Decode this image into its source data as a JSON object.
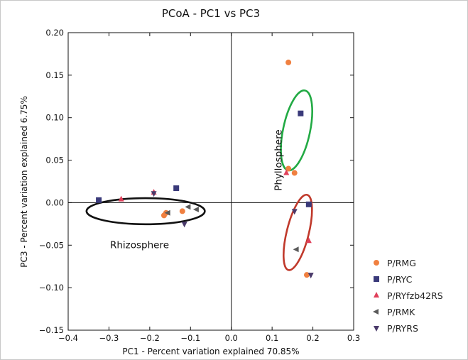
{
  "chart_data": {
    "type": "scatter",
    "title": "PCoA - PC1 vs PC3",
    "xlabel": "PC1 - Percent variation explained 70.85%",
    "ylabel": "PC3 - Percent variation explained 6.75%",
    "xlim": [
      -0.4,
      0.3
    ],
    "ylim": [
      -0.15,
      0.2
    ],
    "xticks": [
      "−0.4",
      "−0.3",
      "−0.2",
      "−0.1",
      "0.0",
      "0.1",
      "0.2",
      "0.3"
    ],
    "yticks": [
      "−0.15",
      "−0.10",
      "−0.05",
      "0.00",
      "0.05",
      "0.10",
      "0.15",
      "0.20"
    ],
    "grid": false,
    "legend_position": "bottom-right, outside plot",
    "series": [
      {
        "name": "P/RMG",
        "marker": "circle",
        "color": "#f08040",
        "points": [
          [
            -0.165,
            -0.015
          ],
          [
            -0.16,
            -0.012
          ],
          [
            -0.12,
            -0.01
          ],
          [
            0.14,
            0.165
          ],
          [
            0.14,
            0.04
          ],
          [
            0.155,
            0.035
          ],
          [
            0.185,
            -0.085
          ]
        ]
      },
      {
        "name": "P/RYC",
        "marker": "square",
        "color": "#3a3a7a",
        "points": [
          [
            -0.325,
            0.003
          ],
          [
            -0.135,
            0.017
          ],
          [
            0.17,
            0.105
          ],
          [
            0.19,
            -0.002
          ]
        ]
      },
      {
        "name": "P/RYfzb42RS",
        "marker": "triangle-up",
        "color": "#e0405a",
        "points": [
          [
            -0.27,
            0.004
          ],
          [
            -0.19,
            0.012
          ],
          [
            0.135,
            0.035
          ],
          [
            0.19,
            -0.045
          ]
        ]
      },
      {
        "name": "P/RMK",
        "marker": "triangle-left",
        "color": "#5a5a5a",
        "points": [
          [
            -0.155,
            -0.012
          ],
          [
            -0.105,
            -0.005
          ],
          [
            -0.085,
            -0.008
          ],
          [
            0.16,
            -0.055
          ]
        ]
      },
      {
        "name": "P/RYRS",
        "marker": "triangle-down",
        "color": "#4a3a6a",
        "points": [
          [
            -0.19,
            0.011
          ],
          [
            -0.115,
            -0.025
          ],
          [
            0.155,
            -0.01
          ],
          [
            0.195,
            -0.085
          ]
        ]
      }
    ],
    "annotations": [
      {
        "text": "Rhizosphere"
      },
      {
        "text": "Phyllosphere"
      }
    ],
    "ellipses": [
      {
        "color": "#111111",
        "cx": -0.21,
        "cy": -0.01,
        "rx": 0.145,
        "ry": 0.032,
        "angle_deg": 0
      },
      {
        "color": "#22aa44",
        "cx": 0.16,
        "cy": 0.085,
        "rx": 0.1,
        "ry": 0.033,
        "angle_deg": -78
      },
      {
        "color": "#c0392b",
        "cx": 0.163,
        "cy": -0.035,
        "rx": 0.095,
        "ry": 0.027,
        "angle_deg": -76
      }
    ]
  }
}
